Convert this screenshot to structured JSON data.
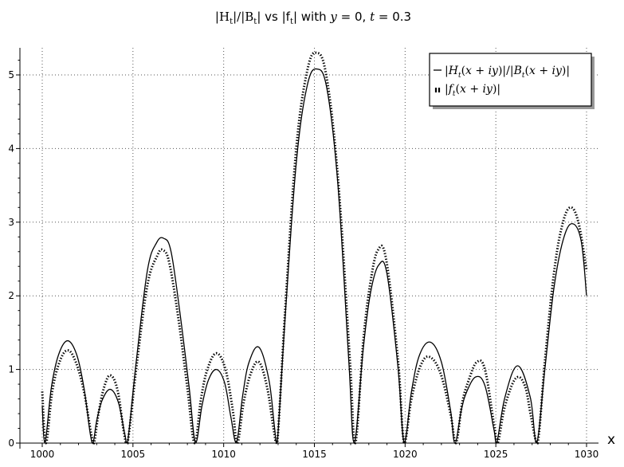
{
  "chart_data": {
    "type": "line",
    "title_parts": [
      "|H",
      "t",
      "|/|B",
      "t",
      "| vs |f",
      "t",
      "| with ",
      "y",
      " = 0, ",
      "t",
      " = 0.3"
    ],
    "xlabel": "x",
    "ylabel": "",
    "xlim": [
      999.5,
      1030.5
    ],
    "ylim": [
      0,
      5.4
    ],
    "x_ticks": [
      1000,
      1005,
      1010,
      1015,
      1020,
      1025,
      1030
    ],
    "y_ticks": [
      0,
      1,
      2,
      3,
      4,
      5
    ],
    "x_tick_labels": [
      "1000",
      "1005",
      "1010",
      "1015",
      "1020",
      "1025",
      "1030"
    ],
    "y_tick_labels": [
      "0",
      "1",
      "2",
      "3",
      "4",
      "5"
    ],
    "grid": true,
    "legend_position": "top-right",
    "legend": [
      {
        "label": "|Ht(x + iy)|/|Bt(x + iy)|",
        "style": "solid"
      },
      {
        "label": "|ft(x + iy)|",
        "style": "dotted"
      }
    ],
    "series": [
      {
        "style": "solid",
        "color": "#000000",
        "x": [
          1000.0,
          1000.15,
          1000.5,
          1000.9,
          1001.4,
          1001.9,
          1002.3,
          1002.65,
          1002.8,
          1003.0,
          1003.3,
          1003.75,
          1004.2,
          1004.55,
          1004.7,
          1005.2,
          1005.8,
          1006.3,
          1006.7,
          1007.1,
          1007.6,
          1008.1,
          1008.45,
          1008.8,
          1009.15,
          1009.6,
          1010.05,
          1010.4,
          1010.7,
          1011.05,
          1011.4,
          1011.95,
          1012.5,
          1012.8,
          1012.95,
          1013.4,
          1014.0,
          1014.6,
          1015.15,
          1015.7,
          1016.3,
          1016.9,
          1017.2,
          1017.7,
          1018.1,
          1018.55,
          1019.0,
          1019.6,
          1019.95,
          1020.35,
          1020.8,
          1021.4,
          1022.0,
          1022.5,
          1022.75,
          1023.1,
          1023.4,
          1023.9,
          1024.4,
          1024.9,
          1025.05,
          1025.5,
          1026.2,
          1026.9,
          1027.25,
          1027.7,
          1028.2,
          1028.7,
          1029.2,
          1029.7,
          1030.0
        ],
        "y": [
          0.5,
          0.0,
          0.75,
          1.2,
          1.39,
          1.2,
          0.75,
          0.12,
          0.0,
          0.3,
          0.58,
          0.73,
          0.55,
          0.12,
          0.0,
          1.15,
          2.35,
          2.72,
          2.78,
          2.6,
          1.75,
          0.75,
          0.0,
          0.5,
          0.85,
          1.0,
          0.82,
          0.35,
          0.0,
          0.65,
          1.1,
          1.3,
          0.85,
          0.22,
          0.0,
          1.75,
          3.8,
          4.85,
          5.08,
          4.8,
          3.5,
          1.1,
          0.0,
          1.3,
          2.05,
          2.42,
          2.3,
          1.05,
          0.0,
          0.7,
          1.2,
          1.37,
          1.1,
          0.45,
          0.0,
          0.45,
          0.7,
          0.9,
          0.78,
          0.18,
          0.0,
          0.62,
          1.05,
          0.62,
          0.0,
          1.0,
          2.1,
          2.75,
          2.98,
          2.75,
          2.0
        ]
      },
      {
        "style": "dotted",
        "color": "#000000",
        "x": [
          1000.0,
          1000.2,
          1000.55,
          1000.95,
          1001.4,
          1001.85,
          1002.3,
          1002.7,
          1002.85,
          1003.1,
          1003.4,
          1003.75,
          1004.15,
          1004.5,
          1004.7,
          1005.2,
          1005.8,
          1006.35,
          1006.65,
          1007.0,
          1007.5,
          1008.0,
          1008.4,
          1008.75,
          1009.1,
          1009.6,
          1010.1,
          1010.5,
          1010.75,
          1011.1,
          1011.5,
          1011.95,
          1012.4,
          1012.75,
          1012.95,
          1013.4,
          1014.0,
          1014.6,
          1015.1,
          1015.65,
          1016.3,
          1016.95,
          1017.25,
          1017.7,
          1018.1,
          1018.5,
          1018.95,
          1019.6,
          1019.95,
          1020.35,
          1020.85,
          1021.35,
          1021.95,
          1022.5,
          1022.8,
          1023.15,
          1023.5,
          1023.95,
          1024.4,
          1024.9,
          1025.1,
          1025.5,
          1026.1,
          1026.6,
          1026.95,
          1027.3,
          1027.7,
          1028.2,
          1028.65,
          1029.1,
          1029.55,
          1030.0
        ],
        "y": [
          0.7,
          0.0,
          0.7,
          1.1,
          1.26,
          1.1,
          0.7,
          0.12,
          0.0,
          0.4,
          0.75,
          0.92,
          0.72,
          0.15,
          0.0,
          1.05,
          2.15,
          2.55,
          2.62,
          2.45,
          1.7,
          0.75,
          0.0,
          0.6,
          1.0,
          1.22,
          1.0,
          0.45,
          0.0,
          0.55,
          0.95,
          1.1,
          0.75,
          0.2,
          0.0,
          1.85,
          4.0,
          5.05,
          5.3,
          5.0,
          3.6,
          1.15,
          0.0,
          1.4,
          2.2,
          2.62,
          2.5,
          1.15,
          0.0,
          0.6,
          1.05,
          1.17,
          0.95,
          0.4,
          0.0,
          0.55,
          0.85,
          1.1,
          1.0,
          0.25,
          0.0,
          0.5,
          0.88,
          0.78,
          0.35,
          0.0,
          1.1,
          2.3,
          2.95,
          3.2,
          3.0,
          2.35
        ]
      }
    ]
  }
}
